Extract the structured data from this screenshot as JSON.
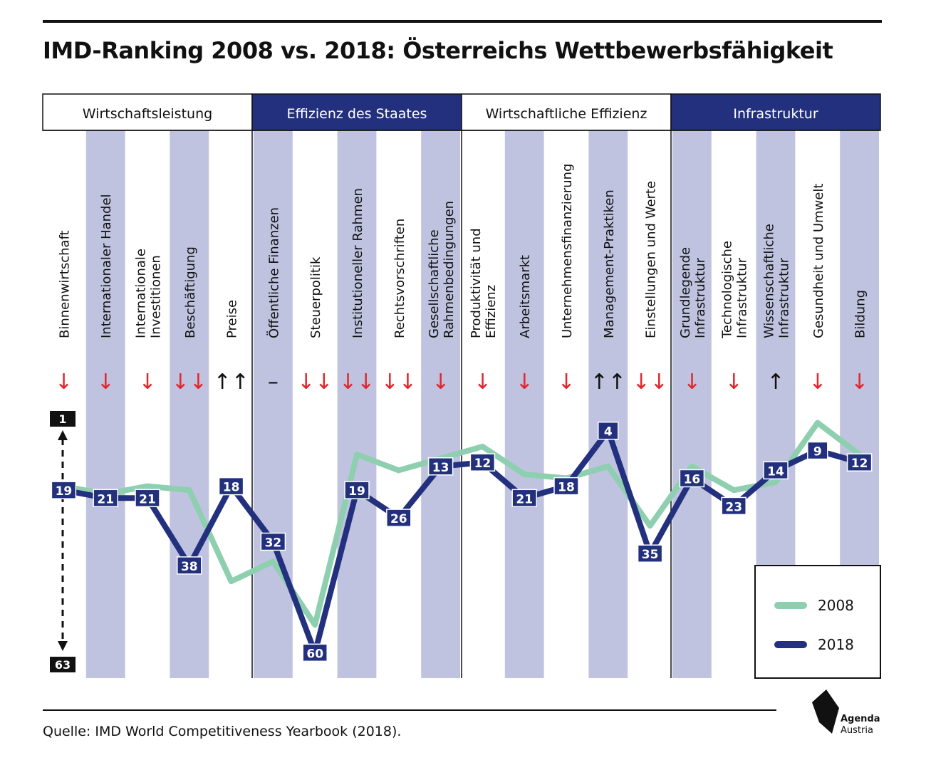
{
  "title": "IMD-Ranking 2008 vs. 2018: Österreichs Wettbewerbsfähigkeit",
  "source": "Quelle: IMD World Competitiveness Yearbook (2018).",
  "logo": {
    "line1": "Agenda",
    "line2": "Austria"
  },
  "colors": {
    "line_2008": "#8ecfb0",
    "line_2018": "#23307e",
    "stripe": "#bfc3df",
    "header_dark": "#23307e",
    "arrow_red": "#e3262b"
  },
  "chart_data": {
    "type": "line",
    "y_axis": {
      "top_label": "1",
      "bottom_label": "63",
      "ylim": [
        1,
        63
      ],
      "inverted": true
    },
    "groups": [
      {
        "name": "Wirtschaftsleistung",
        "count": 5,
        "style": "light"
      },
      {
        "name": "Effizienz des Staates",
        "count": 5,
        "style": "dark"
      },
      {
        "name": "Wirtschaftliche Effizienz",
        "count": 5,
        "style": "light"
      },
      {
        "name": "Infrastruktur",
        "count": 5,
        "style": "dark"
      }
    ],
    "categories": [
      [
        "Binnenwirtschaft"
      ],
      [
        "Internationaler Handel"
      ],
      [
        "Internationale",
        "Investitionen"
      ],
      [
        "Beschäftigung"
      ],
      [
        "Preise"
      ],
      [
        "Öffentliche Finanzen"
      ],
      [
        "Steuerpolitik"
      ],
      [
        "Institutioneller Rahmen"
      ],
      [
        "Rechtsvorschriften"
      ],
      [
        "Gesellschaftliche",
        "Rahmenbedingungen"
      ],
      [
        "Produktivität und",
        "Effizienz"
      ],
      [
        "Arbeitsmarkt"
      ],
      [
        "Unternehmensfinanzierung"
      ],
      [
        "Management-Praktiken"
      ],
      [
        "Einstellungen und Werte"
      ],
      [
        "Grundlegende",
        "Infrastruktur"
      ],
      [
        "Technologische",
        "Infrastruktur"
      ],
      [
        "Wissenschaftliche",
        "Infrastruktur"
      ],
      [
        "Gesundheit und Umwelt"
      ],
      [
        "Bildung"
      ]
    ],
    "trend_arrows": [
      {
        "symbol": "↓",
        "color": "red"
      },
      {
        "symbol": "↓",
        "color": "red"
      },
      {
        "symbol": "↓",
        "color": "red"
      },
      {
        "symbol": "↓↓",
        "color": "red"
      },
      {
        "symbol": "↑↑",
        "color": "black"
      },
      {
        "symbol": "–",
        "color": "black"
      },
      {
        "symbol": "↓↓",
        "color": "red"
      },
      {
        "symbol": "↓↓",
        "color": "red"
      },
      {
        "symbol": "↓↓",
        "color": "red"
      },
      {
        "symbol": "↓",
        "color": "red"
      },
      {
        "symbol": "↓",
        "color": "red"
      },
      {
        "symbol": "↓",
        "color": "red"
      },
      {
        "symbol": "↓",
        "color": "red"
      },
      {
        "symbol": "↑↑",
        "color": "black"
      },
      {
        "symbol": "↓↓",
        "color": "red"
      },
      {
        "symbol": "↓",
        "color": "red"
      },
      {
        "symbol": "↓",
        "color": "red"
      },
      {
        "symbol": "↑",
        "color": "black"
      },
      {
        "symbol": "↓",
        "color": "red"
      },
      {
        "symbol": "↓",
        "color": "red"
      }
    ],
    "series": [
      {
        "name": "2008",
        "values": [
          18,
          20,
          18,
          19,
          42,
          37,
          53,
          10,
          14,
          11,
          8,
          15,
          16,
          13,
          28,
          13,
          19,
          17,
          2,
          10
        ],
        "labeled": false
      },
      {
        "name": "2018",
        "values": [
          19,
          21,
          21,
          38,
          18,
          32,
          60,
          19,
          26,
          13,
          12,
          21,
          18,
          4,
          35,
          16,
          23,
          14,
          9,
          12
        ],
        "labeled": true
      }
    ],
    "legend": {
      "position": "bottom-right"
    }
  }
}
